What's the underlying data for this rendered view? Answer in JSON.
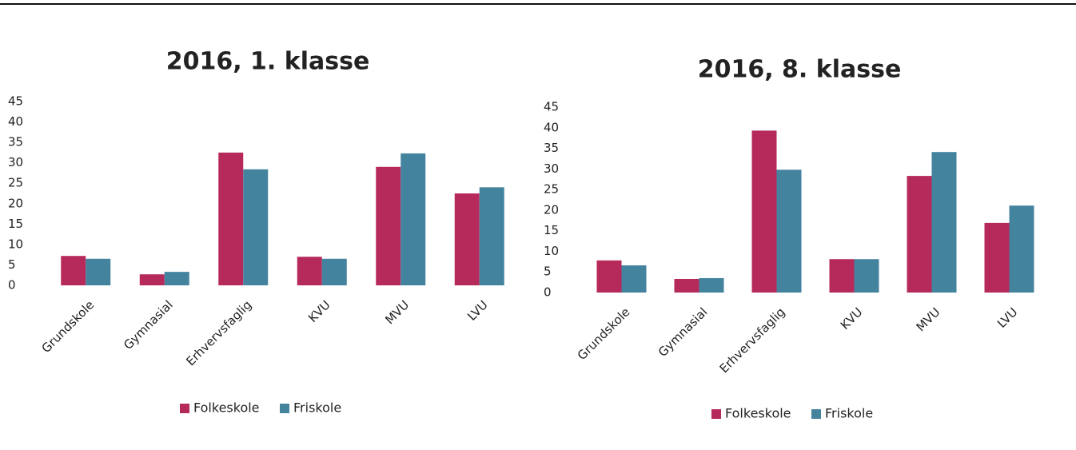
{
  "chart_data": [
    {
      "type": "bar",
      "title": "2016, 1. klasse",
      "categories": [
        "Grundskole",
        "Gymnasial",
        "Erhvervsfaglig",
        "KVU",
        "MVU",
        "LVU"
      ],
      "series": [
        {
          "name": "Folkeskole",
          "color": "#b62a5b",
          "values": [
            7.2,
            2.7,
            32.5,
            7.0,
            29.0,
            22.5
          ]
        },
        {
          "name": "Friskole",
          "color": "#44839e",
          "values": [
            6.5,
            3.3,
            28.4,
            6.5,
            32.3,
            24.0
          ]
        }
      ],
      "ylim": [
        0,
        45
      ],
      "yticks": [
        0,
        5,
        10,
        15,
        20,
        25,
        30,
        35,
        40,
        45
      ],
      "legend": "bottom"
    },
    {
      "type": "bar",
      "title": "2016, 8. klasse",
      "categories": [
        "Grundskole",
        "Gymnasial",
        "Erhvervsfaglig",
        "KVU",
        "MVU",
        "LVU"
      ],
      "series": [
        {
          "name": "Folkeskole",
          "color": "#b62a5b",
          "values": [
            7.8,
            3.3,
            39.3,
            8.1,
            28.3,
            16.9
          ]
        },
        {
          "name": "Friskole",
          "color": "#44839e",
          "values": [
            6.6,
            3.5,
            29.8,
            8.1,
            34.1,
            21.1
          ]
        }
      ],
      "ylim": [
        0,
        45
      ],
      "yticks": [
        0,
        5,
        10,
        15,
        20,
        25,
        30,
        35,
        40,
        45
      ],
      "legend": "bottom"
    }
  ]
}
